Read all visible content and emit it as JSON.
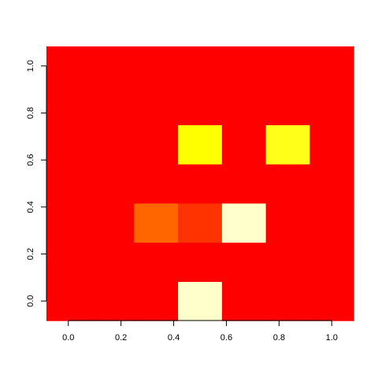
{
  "chart_data": {
    "type": "heatmap",
    "title": "",
    "xlabel": "",
    "ylabel": "",
    "xlim": [
      -0.083,
      1.083
    ],
    "ylim": [
      -0.083,
      1.083
    ],
    "x": [
      0.0,
      0.1667,
      0.3333,
      0.5,
      0.6667,
      0.8333,
      1.0
    ],
    "y": [
      0.0,
      0.1667,
      0.3333,
      0.5,
      0.6667,
      0.8333,
      1.0
    ],
    "x_ticks": [
      "0.0",
      "0.2",
      "0.4",
      "0.6",
      "0.8",
      "1.0"
    ],
    "y_ticks": [
      "0.0",
      "0.2",
      "0.4",
      "0.6",
      "0.8",
      "1.0"
    ],
    "default_color": "#ff0000",
    "cells": [
      {
        "x": 0.5,
        "y": 0.0,
        "color": "#ffffcc"
      },
      {
        "x": 0.3333,
        "y": 0.3333,
        "color": "#ff6600"
      },
      {
        "x": 0.5,
        "y": 0.3333,
        "color": "#ff3300"
      },
      {
        "x": 0.6667,
        "y": 0.3333,
        "color": "#ffffcc"
      },
      {
        "x": 0.5,
        "y": 0.6667,
        "color": "#ffff00"
      },
      {
        "x": 0.8333,
        "y": 0.6667,
        "color": "#ffff1a"
      }
    ]
  }
}
